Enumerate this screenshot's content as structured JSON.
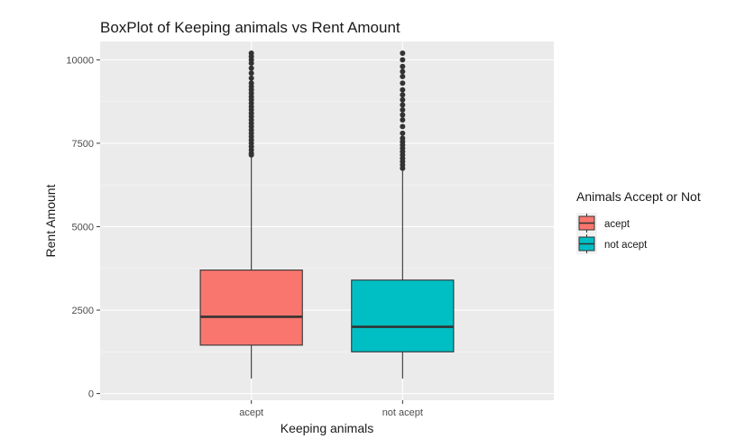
{
  "chart_data": {
    "type": "boxplot",
    "title": "BoxPlot of Keeping animals vs Rent Amount",
    "xlabel": "Keeping animals",
    "ylabel": "Rent Amount",
    "ylim": [
      -200,
      10550
    ],
    "yticks": [
      0,
      2500,
      5000,
      7500,
      10000
    ],
    "grid": true,
    "legend": {
      "title": "Animals Accept or Not",
      "position": "right",
      "entries": [
        {
          "label": "acept",
          "color": "#f8766d"
        },
        {
          "label": "not acept",
          "color": "#00bfc4"
        }
      ]
    },
    "categories": [
      "acept",
      "not acept"
    ],
    "boxes": [
      {
        "category": "acept",
        "color": "#f8766d",
        "whisker_low": 450,
        "q1": 1450,
        "median": 2300,
        "q3": 3700,
        "whisker_high": 7100,
        "outliers": [
          7150,
          7200,
          7300,
          7400,
          7500,
          7600,
          7700,
          7800,
          7900,
          8000,
          8100,
          8200,
          8300,
          8400,
          8500,
          8600,
          8700,
          8800,
          8900,
          9000,
          9100,
          9200,
          9300,
          9450,
          9600,
          9750,
          9900,
          10000,
          10100,
          10200
        ]
      },
      {
        "category": "not acept",
        "color": "#00bfc4",
        "whisker_low": 450,
        "q1": 1250,
        "median": 2000,
        "q3": 3400,
        "whisker_high": 6700,
        "outliers": [
          6750,
          6850,
          6950,
          7050,
          7150,
          7250,
          7350,
          7450,
          7550,
          7650,
          7800,
          8000,
          8200,
          8350,
          8500,
          8650,
          8800,
          8950,
          9100,
          9300,
          9500,
          9650,
          9800,
          10000,
          10200
        ]
      }
    ]
  }
}
